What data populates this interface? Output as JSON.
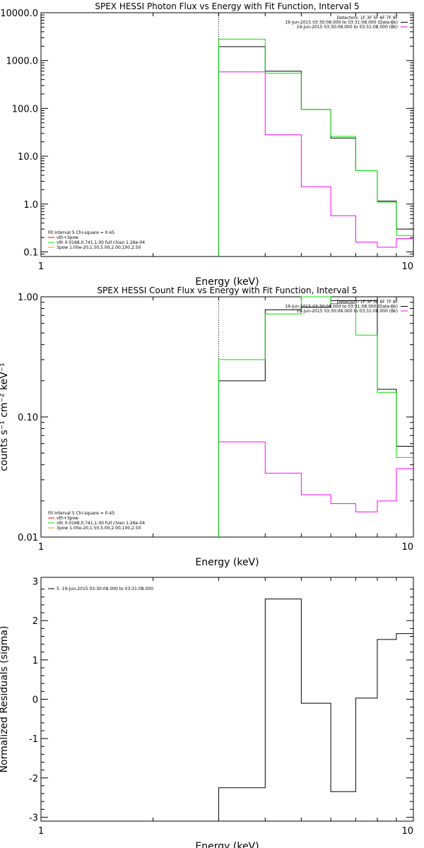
{
  "colors": {
    "data": "#000000",
    "total": "#00e000",
    "bkg": "#ff00ff",
    "vth": "#00e000",
    "pow": "#e0a000",
    "sum": "#ff0000",
    "axis": "#000000"
  },
  "chart_data": [
    {
      "type": "line",
      "title": "SPEX HESSI Photon Flux vs Energy with Fit Function, Interval 5",
      "xlabel": "Energy (keV)",
      "ylabel": "",
      "xscale": "log",
      "yscale": "log",
      "xlim": [
        1,
        10
      ],
      "ylim": [
        0.08,
        10000
      ],
      "x_ticks": [
        "1",
        "10"
      ],
      "y_ticks": [
        "0.1",
        "1.0",
        "10.0",
        "100.0",
        "1000.0",
        "10000.0"
      ],
      "marker_line_x": 3.0,
      "edges": [
        3.0,
        4.0,
        5.0,
        6.0,
        7.0,
        8.0,
        9.0,
        10.0
      ],
      "series": [
        {
          "name": "",
          "color_key": "bkg",
          "values": [
            580,
            28,
            2.3,
            0.57,
            0.16,
            0.125,
            0.19
          ]
        },
        {
          "name": "",
          "color_key": "data",
          "values": [
            1950,
            600,
            95,
            24,
            5.0,
            1.15,
            0.3
          ]
        },
        {
          "name": "",
          "color_key": "total",
          "values": [
            2800,
            540,
            95,
            26,
            5.0,
            1.1,
            0.22
          ]
        }
      ],
      "legend_right": [
        {
          "text": "Detectors: 1F 3F 5F 6F 7F 9F",
          "color_key": ""
        },
        {
          "text": "19-Jun-2015 03:30:08.000 to 03:31:08.000 (Data-Bk)",
          "color_key": "data"
        },
        {
          "text": "19-Jun-2015 03:30:08.000 to 03:31:08.000 (Bk)",
          "color_key": "bkg"
        }
      ],
      "legend_left": [
        {
          "text": "Fit Interval 5   Chi-square = 0.45",
          "color_key": ""
        },
        {
          "text": "vth+3pow",
          "color_key": "sum"
        },
        {
          "text": "vth 0.0168,0.741,1.00  full chian 1.26e-04",
          "color_key": "vth"
        },
        {
          "text": "3pow 1.00e-20,1.50,5.00,2.00,100,2.50",
          "color_key": "pow"
        }
      ]
    },
    {
      "type": "line",
      "title": "SPEX HESSI Count Flux vs Energy with Fit Function, Interval 5",
      "xlabel": "Energy (keV)",
      "ylabel": "counts s⁻¹ cm⁻² keV⁻¹",
      "xscale": "log",
      "yscale": "log",
      "xlim": [
        1,
        10
      ],
      "ylim": [
        0.01,
        1.0
      ],
      "x_ticks": [
        "1",
        "10"
      ],
      "y_ticks": [
        "0.01",
        "0.10",
        "1.00"
      ],
      "marker_line_x": 3.0,
      "edges": [
        3.0,
        4.0,
        5.0,
        6.0,
        7.0,
        8.0,
        9.0,
        10.0
      ],
      "series": [
        {
          "name": "",
          "color_key": "bkg",
          "values": [
            0.062,
            0.034,
            0.0225,
            0.019,
            0.0162,
            0.02,
            0.037
          ]
        },
        {
          "name": "",
          "color_key": "data",
          "values": [
            0.2,
            0.78,
            0.82,
            0.93,
            0.93,
            0.17,
            0.057
          ]
        },
        {
          "name": "",
          "color_key": "total",
          "values": [
            0.3,
            0.72,
            1.08,
            0.88,
            0.48,
            0.16,
            0.046
          ]
        }
      ],
      "legend_right": [
        {
          "text": "Detectors: 1F 3F 5F 6F 7F 9F",
          "color_key": ""
        },
        {
          "text": "19-Jun-2015 03:30:08.000 to 03:31:08.000 (Data-Bk)",
          "color_key": "data"
        },
        {
          "text": "19-Jun-2015 03:30:08.000 to 03:31:08.000 (Bk)",
          "color_key": "bkg"
        }
      ],
      "legend_left": [
        {
          "text": "Fit Interval 5   Chi-square = 0.45",
          "color_key": ""
        },
        {
          "text": "vth+3pow",
          "color_key": "sum"
        },
        {
          "text": "vth 0.0168,0.741,1.00  full chian 1.26e-04",
          "color_key": "vth"
        },
        {
          "text": "3pow 1.00e-20,1.50,5.00,2.00,100,2.50",
          "color_key": "pow"
        }
      ]
    },
    {
      "type": "line",
      "title": "",
      "xlabel": "Energy (keV)",
      "ylabel": "Normalized Residuals (sigma)",
      "xscale": "log",
      "yscale": "linear",
      "xlim": [
        1,
        10
      ],
      "ylim": [
        -3.1,
        3.1
      ],
      "x_ticks": [
        "1",
        "10"
      ],
      "y_ticks": [
        "-3",
        "-2",
        "-1",
        "0",
        "1",
        "2",
        "3"
      ],
      "edges": [
        3.0,
        4.0,
        5.0,
        6.0,
        7.0,
        8.0,
        9.0,
        10.0
      ],
      "series": [
        {
          "name": "",
          "color_key": "data",
          "values": [
            -2.25,
            2.55,
            -0.1,
            -2.35,
            0.03,
            1.52,
            1.67
          ]
        }
      ],
      "legend_left": [
        {
          "text": "5. 19-Jun-2015 03:30:08.000 to 03:31:08.000",
          "color_key": "data"
        }
      ]
    }
  ]
}
